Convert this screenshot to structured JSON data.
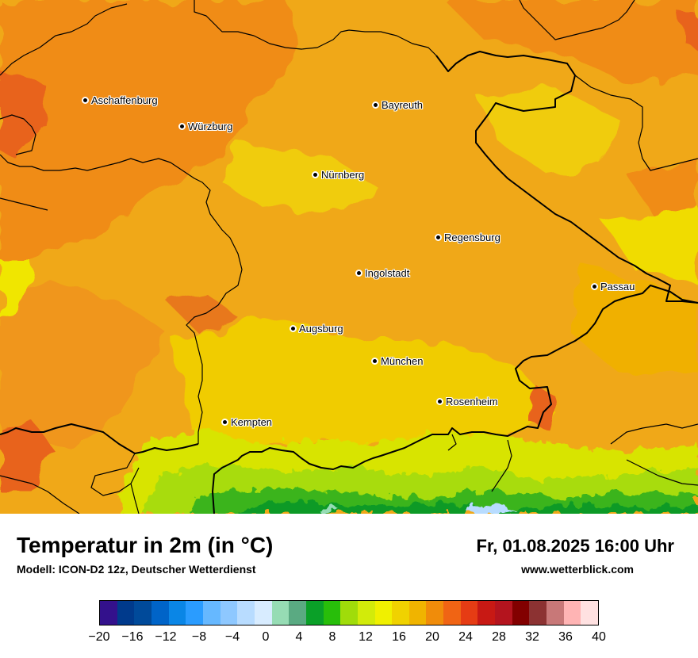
{
  "map": {
    "cities": [
      {
        "name": "Aschaffenburg",
        "icon": "city-marker-icon"
      },
      {
        "name": "Würzburg",
        "icon": "city-marker-icon"
      },
      {
        "name": "Bayreuth",
        "icon": "city-marker-icon"
      },
      {
        "name": "Nürnberg",
        "icon": "city-marker-icon"
      },
      {
        "name": "Regensburg",
        "icon": "city-marker-icon"
      },
      {
        "name": "Ingolstadt",
        "icon": "city-marker-icon"
      },
      {
        "name": "Passau",
        "icon": "city-marker-icon"
      },
      {
        "name": "Augsburg",
        "icon": "city-marker-icon"
      },
      {
        "name": "München",
        "icon": "city-marker-icon"
      },
      {
        "name": "Rosenheim",
        "icon": "city-marker-icon"
      },
      {
        "name": "Kempten",
        "icon": "city-marker-icon"
      }
    ]
  },
  "footer": {
    "title": "Temperatur in 2m (in °C)",
    "subtitle": "Modell: ICON-D2 12z, Deutscher Wetterdienst",
    "datetime": "Fr, 01.08.2025 16:00 Uhr",
    "website": "www.wetterblick.com"
  },
  "legend": {
    "min": -20,
    "max": 40,
    "tick_labels": [
      "−20",
      "−16",
      "−12",
      "−8",
      "−4",
      "0",
      "4",
      "8",
      "12",
      "16",
      "20",
      "24",
      "28",
      "32",
      "36",
      "40"
    ],
    "colors": [
      "#33118c",
      "#003a8c",
      "#004a9a",
      "#0064c8",
      "#0a86e6",
      "#2a9cff",
      "#66b8ff",
      "#8ec8ff",
      "#b8dcff",
      "#d8ecff",
      "#96dcb4",
      "#5aaa82",
      "#0aa028",
      "#28be0a",
      "#a0dc0a",
      "#d2eb0a",
      "#f0f000",
      "#f0d200",
      "#f0b400",
      "#f08c0a",
      "#f06414",
      "#e63c14",
      "#c81914",
      "#b4141e",
      "#820000",
      "#8c3232",
      "#c87878",
      "#ffb4b4",
      "#ffe1e1"
    ]
  }
}
